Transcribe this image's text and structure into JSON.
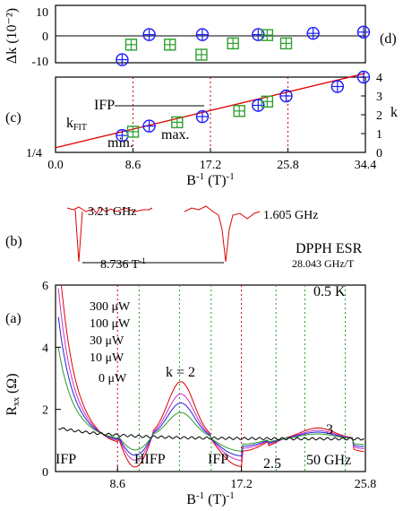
{
  "chart_data": [
    {
      "panel": "(d)",
      "type": "scatter",
      "ylabel": "Δk (10⁻²)",
      "ylim": [
        -10,
        10
      ],
      "yticks": [
        "10",
        "0",
        "-10"
      ],
      "series": [
        {
          "marker": "circle-plus",
          "color": "#1a1aff",
          "points": [
            [
              7.4,
              -9.5
            ],
            [
              10.4,
              0.5
            ],
            [
              16.3,
              0.5
            ],
            [
              22.5,
              0.5
            ],
            [
              28.6,
              1.0
            ],
            [
              34.2,
              1.5
            ]
          ]
        },
        {
          "marker": "square-plus",
          "color": "#2ca02c",
          "points": [
            [
              8.4,
              -3.5
            ],
            [
              12.7,
              -3.5
            ],
            [
              19.7,
              -3
            ],
            [
              25.6,
              -3
            ],
            [
              23.5,
              0.3
            ],
            [
              16.2,
              -7.5
            ]
          ]
        }
      ]
    },
    {
      "panel": "(c)",
      "type": "scatter",
      "xlabel": "B⁻¹ (T)⁻¹",
      "ylabel": "k",
      "xlim": [
        0,
        34.4
      ],
      "ylim": [
        0,
        4
      ],
      "xticks": [
        "0.0",
        "8.6",
        "17.2",
        "25.8",
        "34.4"
      ],
      "yticks_right": [
        "0",
        "1",
        "2",
        "3",
        "4"
      ],
      "ytick_left": "1/4",
      "fit_label": "kFIT",
      "annotations": [
        "IFP",
        "min.",
        "max."
      ],
      "fit_line": [
        [
          0,
          0.25
        ],
        [
          34.4,
          4.2
        ]
      ],
      "series": [
        {
          "name": "min.",
          "marker": "circle-plus",
          "color": "#1a1aff",
          "points": [
            [
              7.4,
              0.9
            ],
            [
              10.4,
              1.4
            ],
            [
              16.3,
              1.9
            ],
            [
              22.5,
              2.5
            ],
            [
              25.6,
              3.0
            ],
            [
              31.3,
              3.5
            ],
            [
              34.2,
              4.0
            ]
          ]
        },
        {
          "name": "max.",
          "marker": "square-plus",
          "color": "#2ca02c",
          "points": [
            [
              8.6,
              1.1
            ],
            [
              13.5,
              1.6
            ],
            [
              20.4,
              2.2
            ],
            [
              23.5,
              2.7
            ]
          ]
        }
      ],
      "vlines": [
        8.6,
        17.2,
        25.8
      ]
    },
    {
      "panel": "(b)",
      "type": "line",
      "title": "DPPH ESR",
      "subtitle": "28.043 GHz/T",
      "labels": [
        "3.21 GHz",
        "1.605 GHz"
      ],
      "spacing_label": "8.736 T⁻¹"
    },
    {
      "panel": "(a)",
      "type": "line",
      "xlabel": "B⁻¹ (T)⁻¹",
      "ylabel": "Rxx (Ω)",
      "xlim": [
        4.3,
        25.8
      ],
      "ylim": [
        0,
        6
      ],
      "xticks": [
        "8.6",
        "17.2",
        "25.8"
      ],
      "yticks": [
        "0",
        "2",
        "4",
        "6"
      ],
      "temperature": "0.5 K",
      "frequency": "50 GHz",
      "annotations": [
        "IFP",
        "HIFP",
        "IFP",
        "2.5",
        "k = 2",
        "3"
      ],
      "series": [
        {
          "name": "300 μW",
          "color": "#e00000"
        },
        {
          "name": "100 μW",
          "color": "#cc33cc"
        },
        {
          "name": "30 μW",
          "color": "#2222dd"
        },
        {
          "name": "10 μW",
          "color": "#2a9a2a"
        },
        {
          "name": "0 μW",
          "color": "#000000"
        }
      ]
    }
  ]
}
